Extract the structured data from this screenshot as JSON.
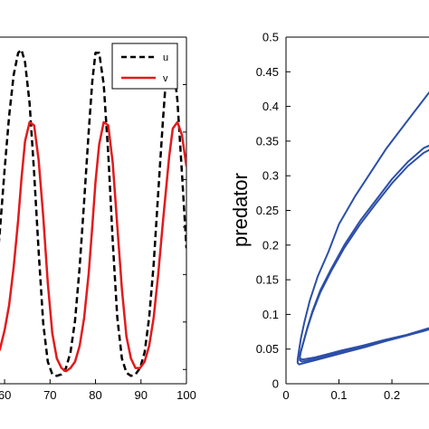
{
  "chart_data": [
    {
      "type": "line",
      "xlim": [
        57,
        100
      ],
      "ylim": [
        0.15,
        1.25
      ],
      "x_ticks": [
        "60",
        "70",
        "80",
        "90",
        "100"
      ],
      "xlabel": "",
      "ylabel": "",
      "grid": false,
      "legend_position": "top-right",
      "x": [
        57,
        58,
        59,
        60,
        61,
        62,
        63,
        63.7,
        64.5,
        65.5,
        66.5,
        67.5,
        68.5,
        69.5,
        70.5,
        71.5,
        72.5,
        73.5,
        74.5,
        75.5,
        76.5,
        77.5,
        78.5,
        79.3,
        80,
        80.8,
        81.8,
        82.8,
        83.8,
        84.8,
        85.8,
        86.8,
        87.8,
        88.8,
        89.8,
        90.8,
        91.8,
        92.8,
        93.8,
        94.8,
        95.6,
        96.2,
        97,
        98,
        99,
        100
      ],
      "series": [
        {
          "name": "u",
          "style": "dashed",
          "color": "#000000",
          "values": [
            0.34,
            0.47,
            0.64,
            0.83,
            1.0,
            1.13,
            1.2,
            1.21,
            1.17,
            1.04,
            0.82,
            0.57,
            0.34,
            0.22,
            0.18,
            0.175,
            0.18,
            0.2,
            0.25,
            0.35,
            0.52,
            0.73,
            0.95,
            1.11,
            1.2,
            1.2,
            1.1,
            0.88,
            0.6,
            0.36,
            0.23,
            0.185,
            0.175,
            0.18,
            0.2,
            0.25,
            0.36,
            0.53,
            0.76,
            0.98,
            1.14,
            1.2,
            1.18,
            1.05,
            0.82,
            0.58
          ]
        },
        {
          "name": "v",
          "style": "solid",
          "color": "#e31a1c",
          "values": [
            0.21,
            0.23,
            0.26,
            0.32,
            0.4,
            0.52,
            0.67,
            0.8,
            0.92,
            0.98,
            0.97,
            0.86,
            0.68,
            0.47,
            0.31,
            0.23,
            0.2,
            0.19,
            0.2,
            0.22,
            0.27,
            0.36,
            0.5,
            0.65,
            0.79,
            0.91,
            0.98,
            0.97,
            0.85,
            0.65,
            0.45,
            0.3,
            0.23,
            0.2,
            0.2,
            0.22,
            0.27,
            0.36,
            0.5,
            0.66,
            0.78,
            0.87,
            0.96,
            0.98,
            0.94,
            0.84
          ]
        }
      ]
    },
    {
      "type": "line",
      "xlim": [
        0,
        0.27
      ],
      "ylim": [
        0,
        0.5
      ],
      "x_ticks": [
        "0",
        "0.1",
        "0.2"
      ],
      "y_ticks": [
        "0",
        "0.05",
        "0.1",
        "0.15",
        "0.2",
        "0.25",
        "0.3",
        "0.35",
        "0.4",
        "0.45",
        "0.5"
      ],
      "xlabel": "",
      "ylabel": "predator",
      "grid": false,
      "series": [
        {
          "color": "#2c4fa8",
          "x": [
            0.29,
            0.27,
            0.25,
            0.22,
            0.19,
            0.16,
            0.13,
            0.1,
            0.08,
            0.06,
            0.045,
            0.035,
            0.028,
            0.024,
            0.022,
            0.022,
            0.025,
            0.03,
            0.04,
            0.055,
            0.08,
            0.11,
            0.15,
            0.19,
            0.23,
            0.26,
            0.29
          ],
          "y": [
            0.43,
            0.42,
            0.4,
            0.37,
            0.34,
            0.305,
            0.27,
            0.23,
            0.19,
            0.155,
            0.12,
            0.09,
            0.065,
            0.045,
            0.035,
            0.03,
            0.028,
            0.029,
            0.031,
            0.034,
            0.039,
            0.045,
            0.053,
            0.062,
            0.07,
            0.077,
            0.085
          ]
        },
        {
          "color": "#2c4fa8",
          "x": [
            0.29,
            0.26,
            0.23,
            0.2,
            0.17,
            0.14,
            0.11,
            0.085,
            0.065,
            0.05,
            0.04,
            0.033,
            0.028,
            0.026,
            0.026,
            0.03,
            0.038,
            0.05,
            0.07,
            0.1,
            0.14,
            0.18,
            0.22,
            0.26,
            0.29
          ],
          "y": [
            0.35,
            0.34,
            0.32,
            0.295,
            0.265,
            0.235,
            0.2,
            0.165,
            0.135,
            0.105,
            0.08,
            0.06,
            0.046,
            0.038,
            0.034,
            0.032,
            0.033,
            0.035,
            0.039,
            0.045,
            0.052,
            0.06,
            0.068,
            0.076,
            0.083
          ]
        },
        {
          "color": "#2c4fa8",
          "x": [
            0.29,
            0.26,
            0.23,
            0.2,
            0.17,
            0.14,
            0.11,
            0.085,
            0.065,
            0.05,
            0.04,
            0.033,
            0.028,
            0.026,
            0.027,
            0.032,
            0.04,
            0.055,
            0.075,
            0.105,
            0.145,
            0.185,
            0.225,
            0.26,
            0.29
          ],
          "y": [
            0.345,
            0.333,
            0.314,
            0.289,
            0.26,
            0.23,
            0.196,
            0.162,
            0.132,
            0.103,
            0.079,
            0.06,
            0.047,
            0.04,
            0.036,
            0.035,
            0.036,
            0.038,
            0.042,
            0.048,
            0.055,
            0.063,
            0.07,
            0.078,
            0.085
          ]
        }
      ]
    }
  ]
}
